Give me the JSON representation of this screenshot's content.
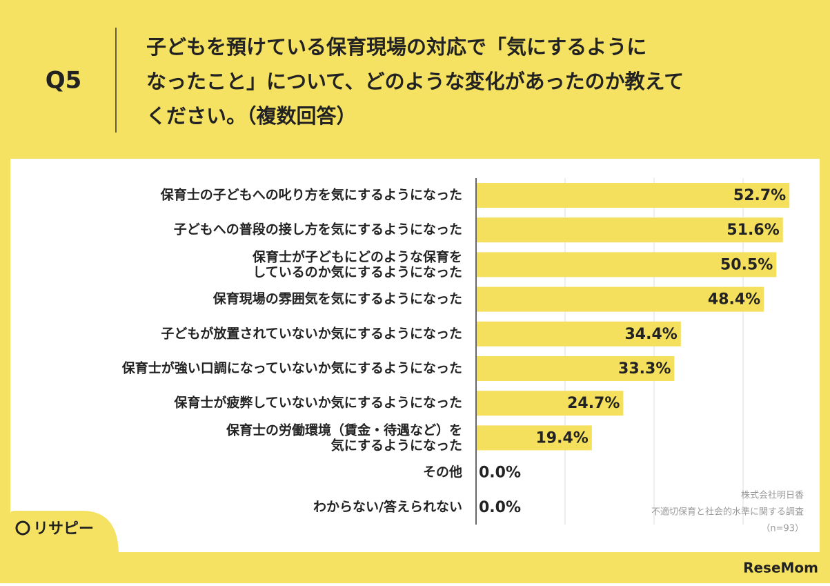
{
  "question": "Q5",
  "chart_data": {
    "type": "bar",
    "orientation": "horizontal",
    "title": [
      "子どもを預けている保育現場の対応で「気にするように",
      "なったこと」について、どのような変化があったのか教えて",
      "ください。（複数回答）"
    ],
    "categories": [
      "保育士の子どもへの叱り方を気にするようになった",
      "子どもへの普段の接し方を気にするようになった",
      "保育士が子どもにどのような保育を\nしているのか気にするようになった",
      "保育現場の雰囲気を気にするようになった",
      "子どもが放置されていないか気にするようになった",
      "保育士が強い口調になっていないか気にするようになった",
      "保育士が疲弊していないか気にするようになった",
      "保育士の労働環境（賃金・待遇など）を\n気にするようになった",
      "その他",
      "わからない/答えられない"
    ],
    "values": [
      52.7,
      51.6,
      50.5,
      48.4,
      34.4,
      33.3,
      24.7,
      19.4,
      0.0,
      0.0
    ],
    "value_labels": [
      "52.7%",
      "51.6%",
      "50.5%",
      "48.4%",
      "34.4%",
      "33.3%",
      "24.7%",
      "19.4%",
      "0.0%",
      "0.0%"
    ],
    "color": "#f5e05e",
    "xlim": [
      0,
      60
    ],
    "xticks": [
      0,
      15,
      30,
      45
    ],
    "grid": true
  },
  "source": [
    "株式会社明日香",
    "不適切保育と社会的水準に関する調査",
    "（n=93）"
  ],
  "logo": "リサピー",
  "watermark": "ReseMom"
}
